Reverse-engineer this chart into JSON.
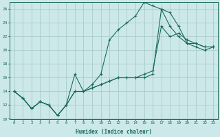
{
  "xlabel": "Humidex (Indice chaleur)",
  "bg_color": "#cce8e8",
  "grid_color": "#aacccc",
  "line_color": "#1a6b5a",
  "xlim": [
    -0.5,
    23.5
  ],
  "ylim": [
    10,
    27
  ],
  "xticks": [
    0,
    1,
    2,
    3,
    4,
    5,
    6,
    7,
    8,
    9,
    10,
    11,
    12,
    13,
    14,
    15,
    16,
    17,
    18,
    19,
    20,
    21,
    22,
    23
  ],
  "yticks": [
    10,
    12,
    14,
    16,
    18,
    20,
    22,
    24,
    26
  ],
  "line1_x": [
    0,
    1,
    2,
    3,
    4,
    5,
    6,
    7,
    8,
    9,
    10,
    11,
    12,
    13,
    14,
    15,
    16,
    17,
    18,
    19,
    20,
    21,
    22,
    23
  ],
  "line1_y": [
    14,
    13,
    11.5,
    12.5,
    12,
    10.5,
    12,
    16.5,
    14,
    15,
    16.5,
    21.5,
    23,
    24,
    25,
    27,
    26.5,
    26,
    25.5,
    23.5,
    21,
    21,
    20.5,
    20.5
  ],
  "line2_x": [
    0,
    1,
    2,
    3,
    4,
    5,
    6,
    7,
    8,
    9,
    10,
    11,
    12,
    13,
    14,
    15,
    16,
    17,
    18,
    19,
    20,
    21,
    22,
    23
  ],
  "line2_y": [
    14,
    13,
    11.5,
    12.5,
    12,
    10.5,
    12,
    14,
    14,
    14.5,
    15,
    15.5,
    16,
    16,
    16,
    16.5,
    17,
    23.5,
    22,
    22.5,
    21.5,
    21,
    20.5,
    20.5
  ],
  "line3_x": [
    0,
    1,
    2,
    3,
    4,
    5,
    6,
    7,
    8,
    9,
    10,
    11,
    12,
    13,
    14,
    15,
    16,
    17,
    18,
    19,
    20,
    21,
    22,
    23
  ],
  "line3_y": [
    14,
    13,
    11.5,
    12.5,
    12,
    10.5,
    12,
    14,
    14,
    14.5,
    15,
    15.5,
    16,
    16,
    16,
    16,
    16.5,
    26,
    23.5,
    22,
    21,
    20.5,
    20,
    20.5
  ]
}
